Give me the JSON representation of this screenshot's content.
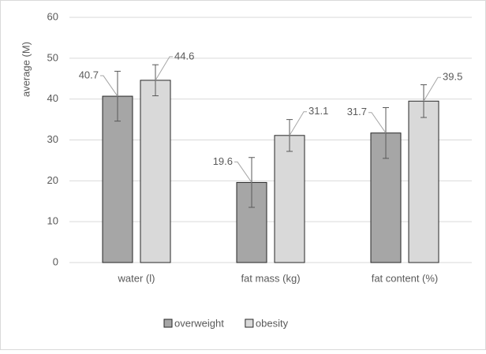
{
  "chart_data": {
    "type": "bar",
    "y_label": "average  (M)",
    "categories": [
      "water (l)",
      "fat mass (kg)",
      "fat content (%)"
    ],
    "series": [
      {
        "name": "overweight",
        "color": "#a6a6a6",
        "values": [
          40.7,
          19.6,
          31.7
        ],
        "errors": [
          6.1,
          6.1,
          6.2
        ]
      },
      {
        "name": "obesity",
        "color": "#d9d9d9",
        "values": [
          44.6,
          31.1,
          39.5
        ],
        "errors": [
          3.8,
          3.9,
          4.0
        ]
      }
    ],
    "ylim": [
      0,
      60
    ],
    "yticks": [
      0,
      10,
      20,
      30,
      40,
      50,
      60
    ],
    "grid": true,
    "legend": "bottom"
  }
}
